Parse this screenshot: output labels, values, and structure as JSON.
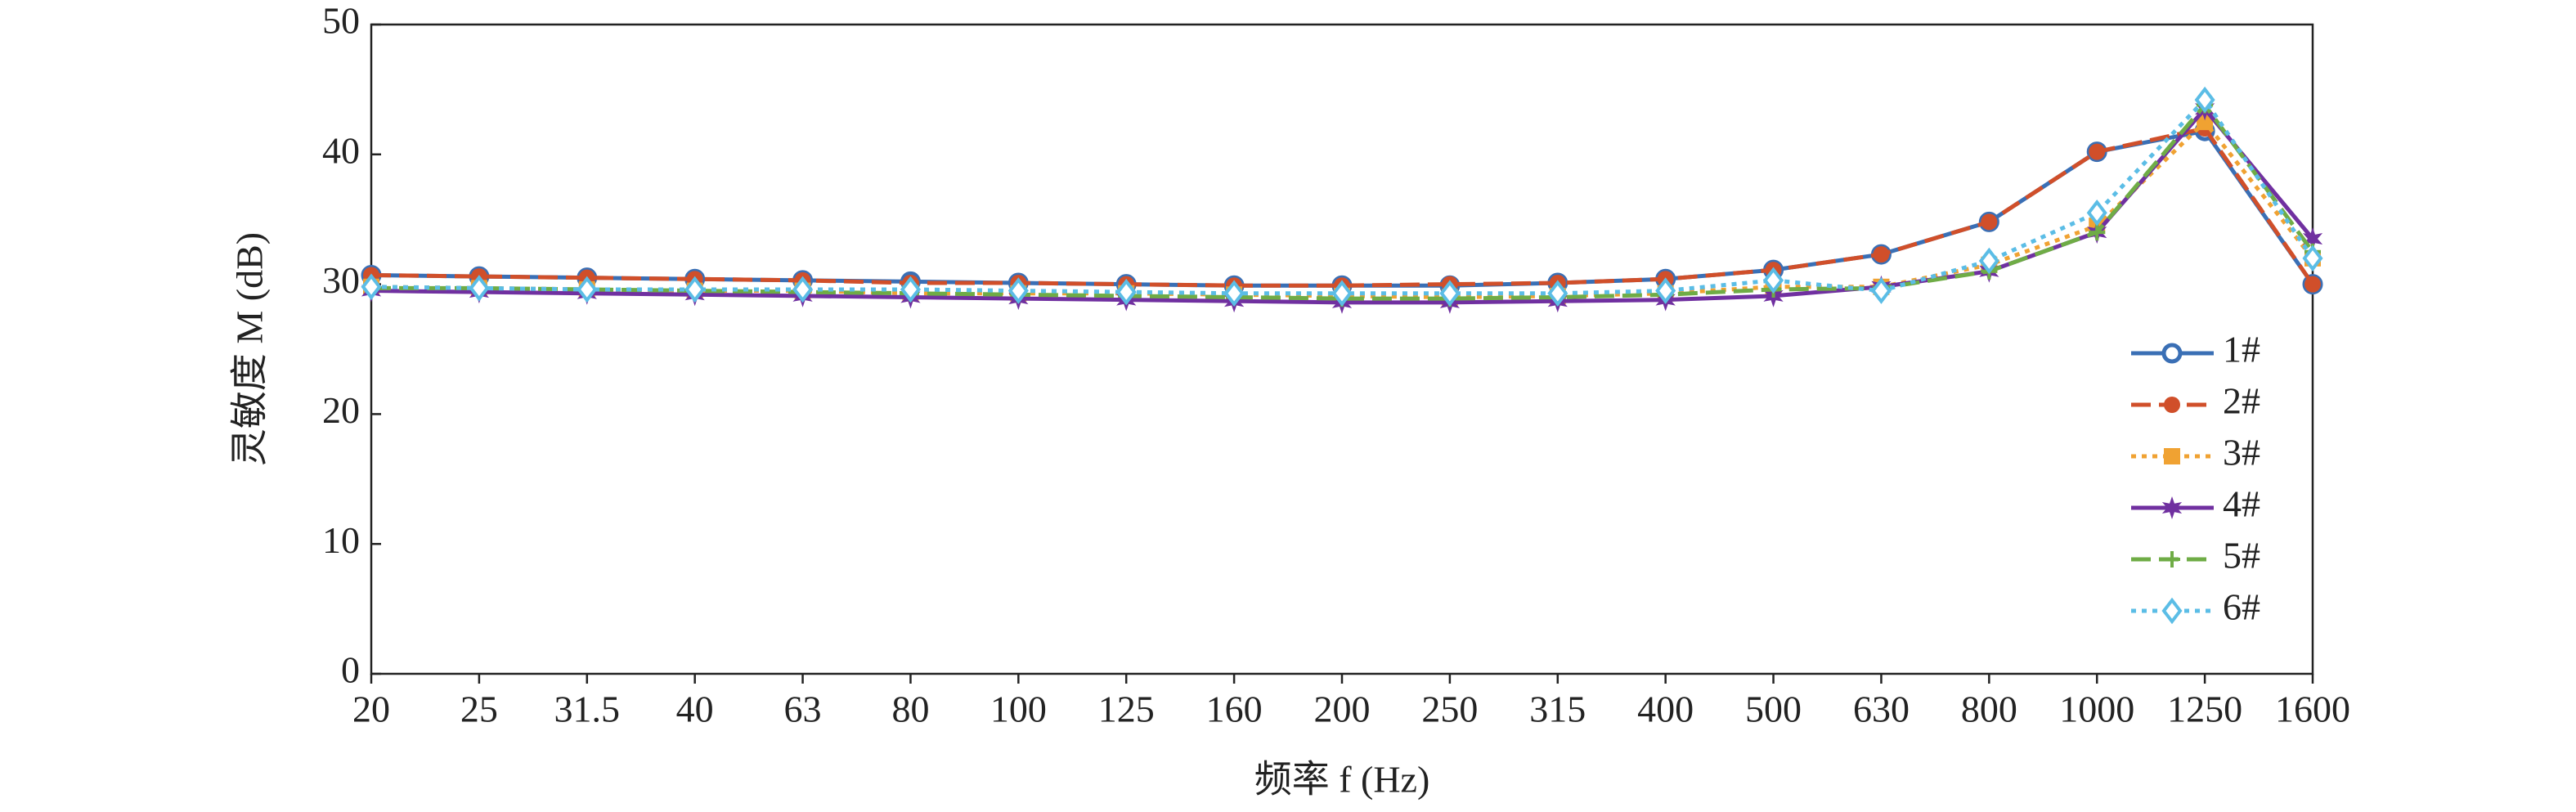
{
  "chart_data": {
    "type": "line",
    "x_label": "频率 f (Hz)",
    "y_label": "灵敏度 M (dB)",
    "categories": [
      "20",
      "25",
      "31.5",
      "40",
      "63",
      "80",
      "100",
      "125",
      "160",
      "200",
      "250",
      "315",
      "400",
      "500",
      "630",
      "800",
      "1000",
      "1250",
      "1600"
    ],
    "ylim": [
      0,
      50
    ],
    "yticks": [
      0,
      10,
      20,
      30,
      40,
      50
    ],
    "legend": "right",
    "series": [
      {
        "name": "1#",
        "color": "#3a6fb5",
        "dash": "solid",
        "marker": "open-circle",
        "values": [
          30.7,
          30.6,
          30.5,
          30.4,
          30.3,
          30.2,
          30.1,
          30.0,
          29.9,
          29.9,
          29.9,
          30.1,
          30.4,
          31.1,
          32.3,
          34.8,
          40.2,
          41.8,
          30.0
        ]
      },
      {
        "name": "2#",
        "color": "#d04f2a",
        "dash": "dashed",
        "marker": "circle",
        "values": [
          30.7,
          30.6,
          30.5,
          30.4,
          30.3,
          30.1,
          30.1,
          30.0,
          29.9,
          29.9,
          30.0,
          30.1,
          30.4,
          31.1,
          32.3,
          34.8,
          40.2,
          42.0,
          30.0
        ]
      },
      {
        "name": "3#",
        "color": "#f0a232",
        "dash": "dotted",
        "marker": "square",
        "values": [
          29.8,
          29.7,
          29.6,
          29.5,
          29.5,
          29.3,
          29.3,
          29.3,
          29.2,
          29.1,
          29.0,
          29.1,
          29.3,
          29.8,
          29.8,
          31.5,
          34.5,
          42.5,
          32.0
        ]
      },
      {
        "name": "4#",
        "color": "#7030a0",
        "dash": "solid",
        "marker": "star",
        "values": [
          29.5,
          29.4,
          29.3,
          29.2,
          29.1,
          29.0,
          28.9,
          28.8,
          28.7,
          28.6,
          28.6,
          28.7,
          28.8,
          29.1,
          29.8,
          31.0,
          34.0,
          43.5,
          33.5
        ]
      },
      {
        "name": "5#",
        "color": "#6fac46",
        "dash": "dashed",
        "marker": "plus",
        "values": [
          29.7,
          29.7,
          29.6,
          29.5,
          29.4,
          29.3,
          29.2,
          29.1,
          29.0,
          28.9,
          28.9,
          29.0,
          29.2,
          29.6,
          29.7,
          31.0,
          34.0,
          43.8,
          32.5
        ]
      },
      {
        "name": "6#",
        "color": "#5bbde6",
        "dash": "dotted",
        "marker": "diamond",
        "values": [
          29.8,
          29.7,
          29.6,
          29.6,
          29.6,
          29.6,
          29.5,
          29.4,
          29.3,
          29.3,
          29.3,
          29.3,
          29.5,
          30.3,
          29.5,
          31.8,
          35.5,
          44.2,
          32.0
        ]
      }
    ]
  }
}
